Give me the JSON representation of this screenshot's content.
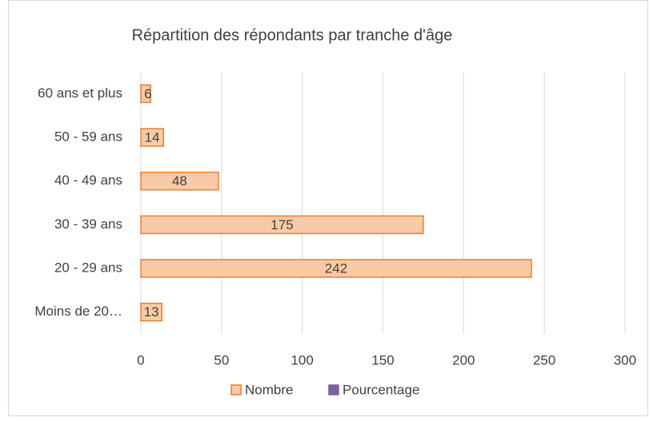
{
  "chart_data": {
    "type": "bar",
    "orientation": "horizontal",
    "title": "Répartition des répondants par tranche d'âge",
    "categories": [
      "60 ans et plus",
      "50 - 59 ans",
      "40 - 49 ans",
      "30 - 39 ans",
      "20 - 29 ans",
      "Moins de 20…"
    ],
    "series": [
      {
        "name": "Nombre",
        "color": "#f8cba6",
        "edge": "#ed7d31",
        "values": [
          6,
          14,
          48,
          175,
          242,
          13
        ]
      },
      {
        "name": "Pourcentage",
        "color": "#7f5fa0",
        "values": [
          null,
          null,
          null,
          null,
          null,
          null
        ]
      }
    ],
    "xlim": [
      0,
      300
    ],
    "xticks": [
      0,
      50,
      100,
      150,
      200,
      250,
      300
    ],
    "grid": true,
    "legend": "bottom"
  }
}
